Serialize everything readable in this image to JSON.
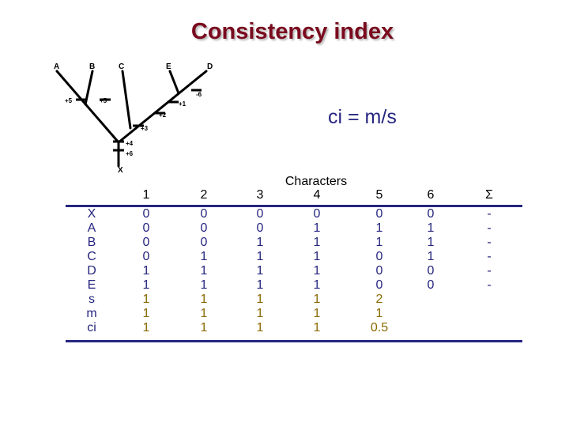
{
  "title": "Consistency index",
  "formula": "ci = m/s",
  "tree": {
    "taxa": [
      "A",
      "B",
      "C",
      "E",
      "D"
    ],
    "root": "X",
    "changes": [
      "+5",
      "+5",
      "-6",
      "+1",
      "+2",
      "+3",
      "+4",
      "+6"
    ]
  },
  "table": {
    "group_label": "Characters",
    "columns": [
      "1",
      "2",
      "3",
      "4",
      "5",
      "6",
      "Σ"
    ],
    "row_labels": [
      "X",
      "A",
      "B",
      "C",
      "D",
      "E",
      "s",
      "m",
      "ci"
    ],
    "columns_data": [
      [
        "0",
        "0",
        "0",
        "0",
        "1",
        "1",
        "1",
        "1",
        "1"
      ],
      [
        "0",
        "0",
        "0",
        "1",
        "1",
        "1",
        "1",
        "1",
        "1"
      ],
      [
        "0",
        "0",
        "1",
        "1",
        "1",
        "1",
        "1",
        "1",
        "1"
      ],
      [
        "0",
        "1",
        "1",
        "1",
        "1",
        "1",
        "1",
        "1",
        "1"
      ],
      [
        "0",
        "1",
        "1",
        "0",
        "0",
        "0",
        "2",
        "1",
        "0.5"
      ],
      [
        "0",
        "1",
        "1",
        "1",
        "0",
        "0",
        "",
        "",
        ""
      ],
      [
        "-",
        "-",
        "-",
        "-",
        "-",
        "-",
        "",
        "",
        ""
      ]
    ]
  },
  "colors": {
    "title": "#7a0a1e",
    "table_text": "#262680",
    "highlight_text": "#8a6a00"
  }
}
